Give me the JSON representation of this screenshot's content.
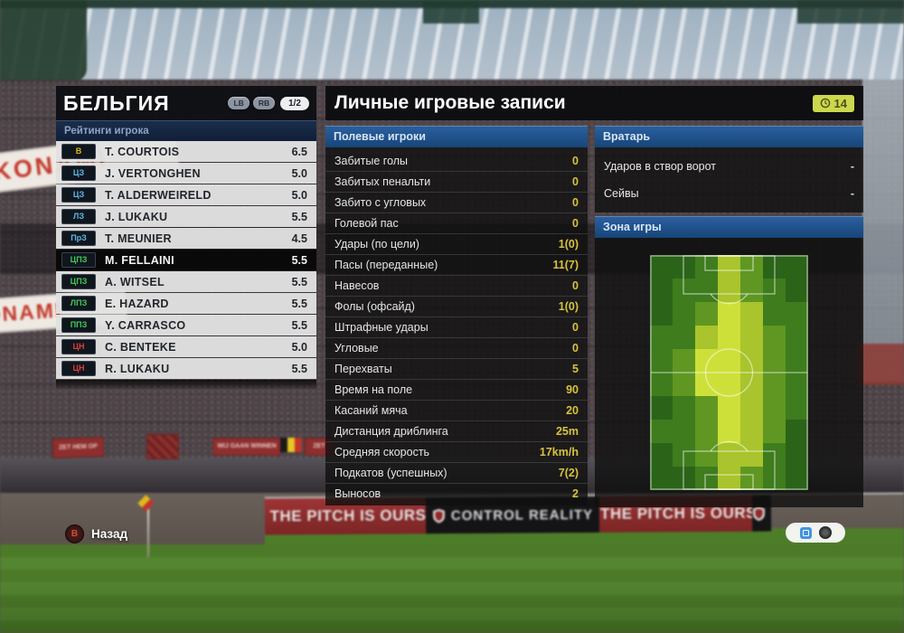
{
  "left_panel": {
    "title": "БЕЛЬГИЯ",
    "lb_label": "LB",
    "rb_label": "RB",
    "page_indicator": "1/2",
    "section_header": "Рейтинги игрока",
    "players": [
      {
        "pos": "В",
        "role": "gk",
        "name": "T. COURTOIS",
        "rating": "6.5",
        "row_class": ""
      },
      {
        "pos": "ЦЗ",
        "role": "df",
        "name": "J. VERTONGHEN",
        "rating": "5.0",
        "row_class": ""
      },
      {
        "pos": "ЦЗ",
        "role": "df",
        "name": "T. ALDERWEIRELD",
        "rating": "5.0",
        "row_class": ""
      },
      {
        "pos": "ЛЗ",
        "role": "df",
        "name": "J. LUKAKU",
        "rating": "5.5",
        "row_class": ""
      },
      {
        "pos": "ПрЗ",
        "role": "df",
        "name": "T. MEUNIER",
        "rating": "4.5",
        "row_class": ""
      },
      {
        "pos": "ЦПЗ",
        "role": "mf",
        "name": "M. FELLAINI",
        "rating": "5.5",
        "row_class": "selected"
      },
      {
        "pos": "ЦПЗ",
        "role": "mf",
        "name": "A. WITSEL",
        "rating": "5.5",
        "row_class": ""
      },
      {
        "pos": "ЛПЗ",
        "role": "mf",
        "name": "E. HAZARD",
        "rating": "5.5",
        "row_class": ""
      },
      {
        "pos": "ППЗ",
        "role": "mf",
        "name": "Y. CARRASCO",
        "rating": "5.5",
        "row_class": ""
      },
      {
        "pos": "ЦН",
        "role": "fw",
        "name": "C. BENTEKE",
        "rating": "5.0",
        "row_class": ""
      },
      {
        "pos": "ЦН",
        "role": "fw",
        "name": "R. LUKAKU",
        "rating": "5.5",
        "row_class": ""
      }
    ]
  },
  "right_panel": {
    "title": "Личные игровые записи",
    "timer_value": "14",
    "field_players": {
      "header": "Полевые игроки",
      "stats": [
        {
          "label": "Забитые голы",
          "value": "0"
        },
        {
          "label": "Забитых пенальти",
          "value": "0"
        },
        {
          "label": "Забито с угловых",
          "value": "0"
        },
        {
          "label": "Голевой пас",
          "value": "0"
        },
        {
          "label": "Удары (по цели)",
          "value": "1(0)"
        },
        {
          "label": "Пасы (переданные)",
          "value": "11(7)"
        },
        {
          "label": "Навесов",
          "value": "0"
        },
        {
          "label": "Фолы (офсайд)",
          "value": "1(0)"
        },
        {
          "label": "Штрафные удары",
          "value": "0"
        },
        {
          "label": "Угловые",
          "value": "0"
        },
        {
          "label": "Перехваты",
          "value": "5"
        },
        {
          "label": "Время на поле",
          "value": "90"
        },
        {
          "label": "Касаний мяча",
          "value": "20"
        },
        {
          "label": "Дистанция дриблинга",
          "value": "25m"
        },
        {
          "label": "Средняя скорость",
          "value": "17km/h"
        },
        {
          "label": "Подкатов (успешных)",
          "value": "7(2)"
        },
        {
          "label": "Выносов",
          "value": "2"
        }
      ]
    },
    "goalkeeper": {
      "header": "Вратарь",
      "stats": [
        {
          "label": "Ударов в створ ворот",
          "value": "-"
        },
        {
          "label": "Сейвы",
          "value": "-"
        }
      ]
    },
    "zone": {
      "header": "Зона игры",
      "heatmap": {
        "cols": 7,
        "rows": 10,
        "palette": [
          "#2b6418",
          "#3e7c1d",
          "#5f9722",
          "#a9c42c",
          "#cde03a"
        ],
        "grid": [
          [
            0,
            0,
            1,
            3,
            2,
            0,
            0
          ],
          [
            0,
            1,
            1,
            3,
            2,
            1,
            0
          ],
          [
            0,
            1,
            2,
            4,
            3,
            1,
            1
          ],
          [
            1,
            1,
            3,
            4,
            3,
            2,
            1
          ],
          [
            1,
            2,
            4,
            4,
            3,
            2,
            1
          ],
          [
            1,
            2,
            4,
            4,
            3,
            2,
            1
          ],
          [
            0,
            1,
            2,
            4,
            3,
            2,
            1
          ],
          [
            1,
            1,
            2,
            4,
            3,
            2,
            0
          ],
          [
            0,
            1,
            2,
            3,
            3,
            1,
            0
          ],
          [
            0,
            0,
            1,
            3,
            2,
            1,
            0
          ]
        ]
      }
    }
  },
  "footer": {
    "back_button": "B",
    "back_label": "Назад"
  },
  "background": {
    "konami_banner_1": "KONAMI",
    "konami_banner_2": "KONAMI",
    "fan_banners": [
      {
        "kind": "text",
        "text": "ZET HEM OP"
      },
      {
        "kind": "crest",
        "text": ""
      },
      {
        "kind": "text",
        "text": "WIJ GAAN WINNEN"
      },
      {
        "kind": "flag",
        "text": ""
      },
      {
        "kind": "text",
        "text": "ZET"
      }
    ],
    "ad_boards": [
      {
        "style": "red",
        "text": "THE PITCH IS OURS",
        "shield": "yes"
      },
      {
        "style": "dark",
        "text": "CONTROL REALITY",
        "shield": ""
      },
      {
        "style": "red",
        "text": "THE PITCH IS OURS",
        "shield": "yes"
      },
      {
        "style": "dark",
        "text": "",
        "shield": ""
      }
    ]
  },
  "colors": {
    "value_yellow": "#d6c33c",
    "section_blue": "#2b5f9f",
    "role_gk": "#d9ba12",
    "role_df": "#5fb8e8",
    "role_mf": "#41c957",
    "role_fw": "#da4038",
    "board_red": "#9e3434",
    "timer_badge": "#ccd84c"
  }
}
